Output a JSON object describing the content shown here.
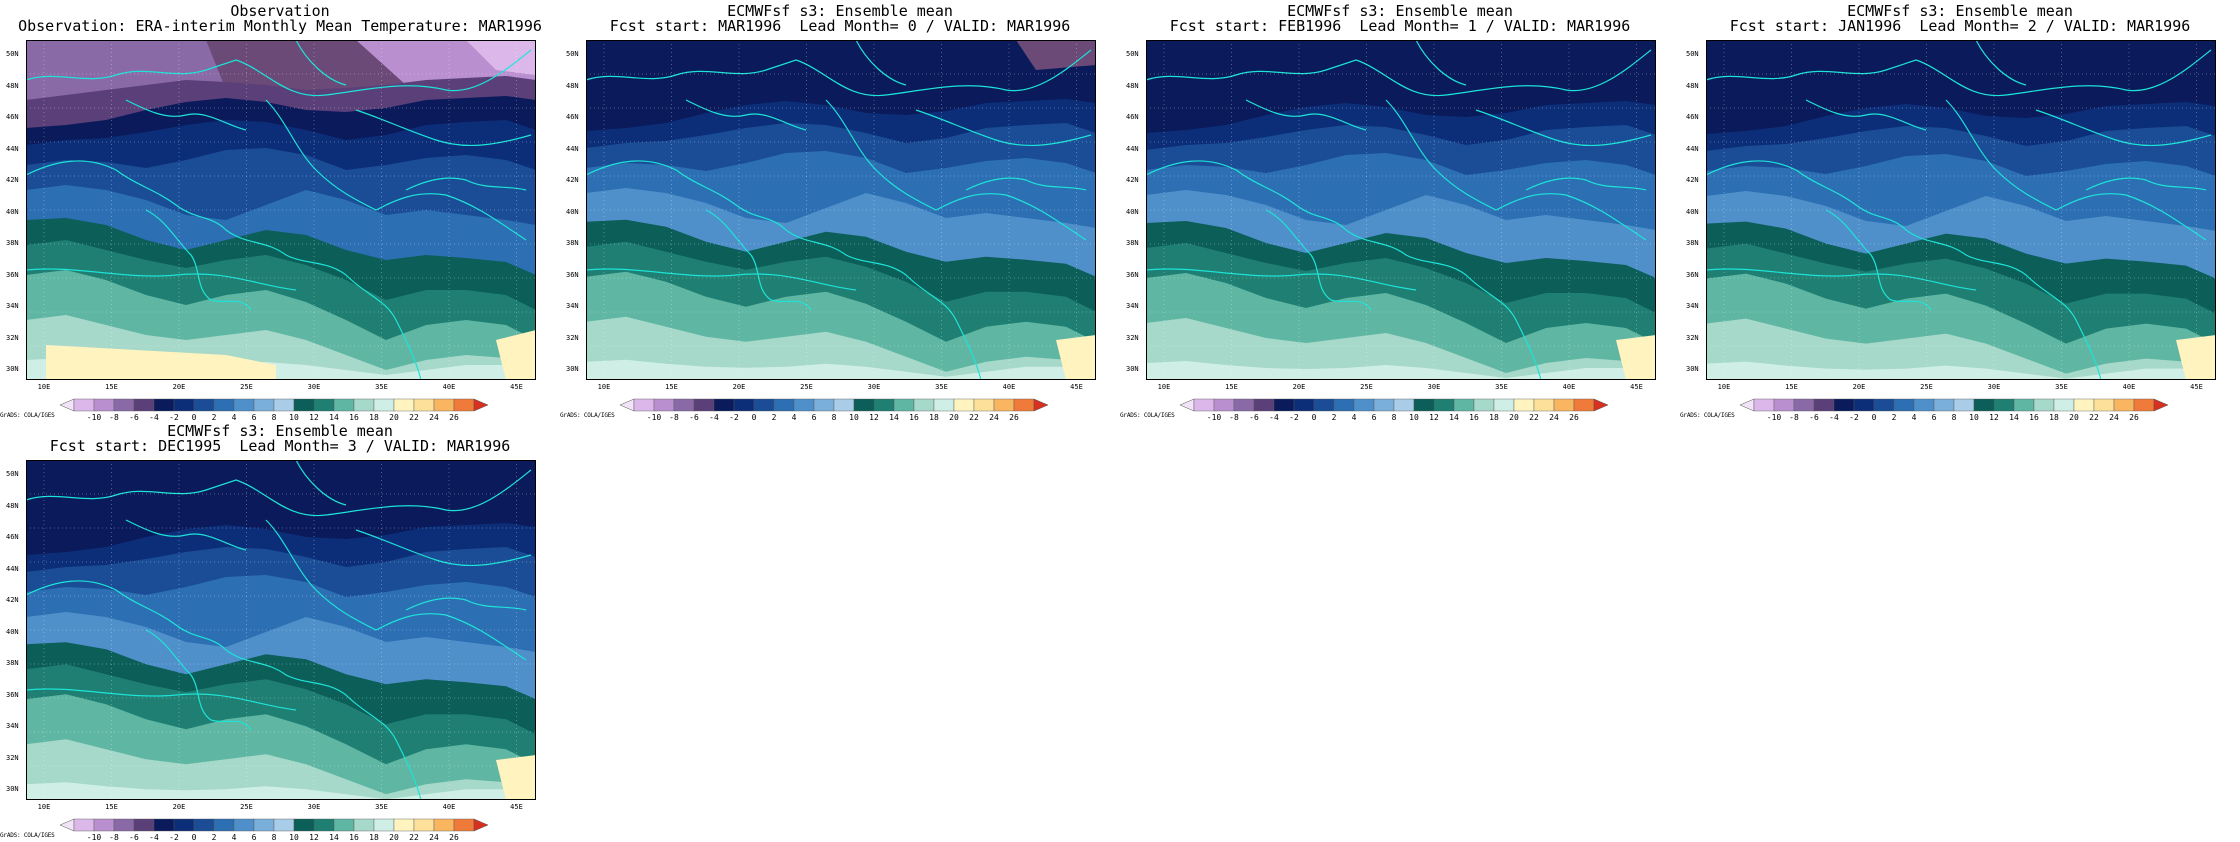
{
  "colorbar": {
    "label": "GrADS: COLA/IGES",
    "ticks": [
      "-10",
      "-8",
      "-6",
      "-4",
      "-2",
      "0",
      "2",
      "4",
      "6",
      "8",
      "10",
      "12",
      "14",
      "16",
      "18",
      "20",
      "22",
      "24",
      "26"
    ],
    "colors": [
      "#f2e4f7",
      "#dcb8ea",
      "#b98fcf",
      "#8a6aa6",
      "#5a3f78",
      "#0a1a5a",
      "#0c2e78",
      "#1a4d95",
      "#2d6fb3",
      "#4f8fca",
      "#7aafdb",
      "#a9cde8",
      "#0c5e58",
      "#1f7f72",
      "#5fb6a3",
      "#a6d9c9",
      "#cfeee6",
      "#fff3bf",
      "#fde09a",
      "#f9b55f",
      "#f07a3a",
      "#d7301f"
    ]
  },
  "lat_labels": [
    "50N",
    "48N",
    "46N",
    "44N",
    "42N",
    "40N",
    "38N",
    "36N",
    "34N",
    "32N",
    "30N"
  ],
  "lon_labels": [
    "10E",
    "15E",
    "20E",
    "25E",
    "30E",
    "35E",
    "40E",
    "45E"
  ],
  "panels": [
    {
      "line1": "Observation",
      "line2": "Observation: ERA-interim Monthly Mean Temperature: MAR1996"
    },
    {
      "line1": "ECMWFsf s3: Ensemble mean",
      "line2": "Fcst start: MAR1996  Lead Month= 0 / VALID: MAR1996"
    },
    {
      "line1": "ECMWFsf s3: Ensemble mean",
      "line2": "Fcst start: FEB1996  Lead Month= 1 / VALID: MAR1996"
    },
    {
      "line1": "ECMWFsf s3: Ensemble mean",
      "line2": "Fcst start: JAN1996  Lead Month= 2 / VALID: MAR1996"
    },
    {
      "line1": "ECMWFsf s3: Ensemble mean",
      "line2": "Fcst start: DEC1995  Lead Month= 3 / VALID: MAR1996"
    }
  ]
}
